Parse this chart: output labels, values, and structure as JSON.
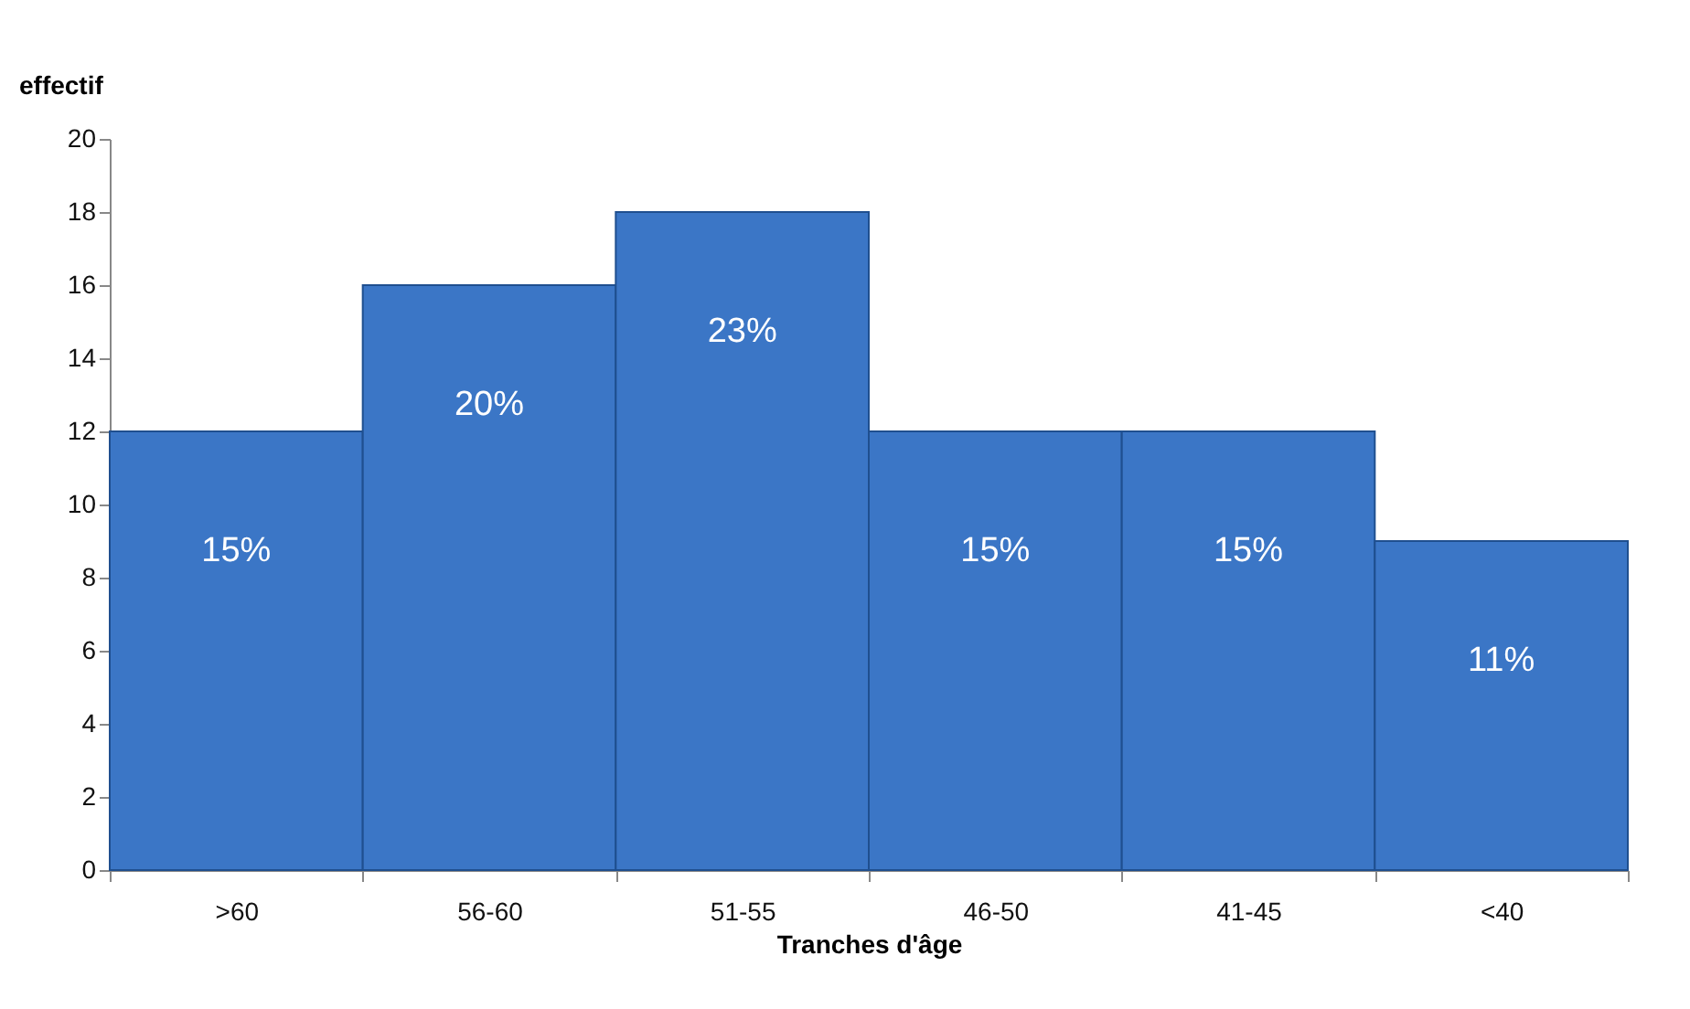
{
  "chart_data": {
    "type": "bar",
    "xlabel": "Tranches d'âge",
    "ylabel": "effectif",
    "categories": [
      ">60",
      "56-60",
      "51-55",
      "46-50",
      "41-45",
      "<40"
    ],
    "values": [
      12,
      16,
      18,
      12,
      12,
      9
    ],
    "annotations": [
      {
        "text": "15%",
        "x": ">60",
        "y": 12
      },
      {
        "text": "20%",
        "x": "56-60",
        "y": 16
      },
      {
        "text": "23%",
        "x": "51-55",
        "y": 18
      },
      {
        "text": "15%",
        "x": "46-50",
        "y": 12
      },
      {
        "text": "15%",
        "x": "41-45",
        "y": 12
      },
      {
        "text": "11%",
        "x": "<40",
        "y": 9
      }
    ],
    "color": "#3b76c6",
    "ylim": [
      0,
      20
    ],
    "yticks": [
      0,
      2,
      4,
      6,
      8,
      10,
      12,
      14,
      16,
      18,
      20
    ],
    "grid": false
  }
}
